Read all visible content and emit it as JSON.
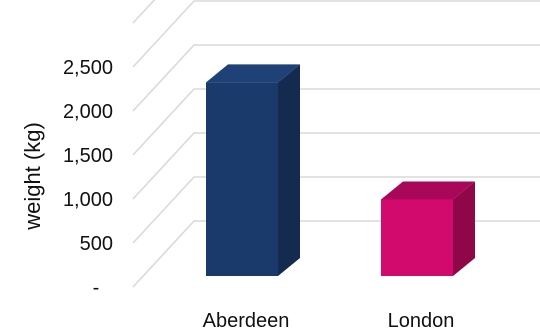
{
  "chart_data": {
    "type": "bar",
    "style": "3d-column",
    "categories": [
      "Aberdeen",
      "London"
    ],
    "values": [
      2200,
      870
    ],
    "colors": {
      "Aberdeen": {
        "front": "#1a3a6c",
        "side": "#142a4f",
        "top": "#1e4278"
      },
      "London": {
        "front": "#d20a6e",
        "side": "#8f0649",
        "top": "#a9075a"
      },
      "grid": "#d9d9d9"
    },
    "ylabel": "weight (kg)",
    "xlabel": "",
    "title": "",
    "ylim": [
      0,
      2500
    ],
    "yticks": [
      0,
      500,
      1000,
      1500,
      2000,
      2500
    ],
    "ytick_labels": [
      "-",
      "500",
      "1,000",
      "1,500",
      "2,000",
      "2,500"
    ],
    "grid": true,
    "legend": "none"
  }
}
